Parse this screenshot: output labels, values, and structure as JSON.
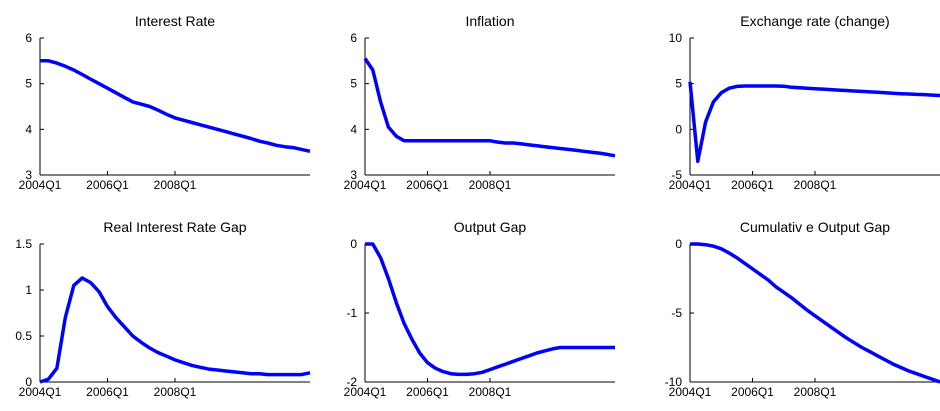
{
  "chart_data": [
    {
      "type": "line",
      "title": "Interest Rate",
      "x_ticks": [
        "2004Q1",
        "2006Q1",
        "2008Q1"
      ],
      "yticks": [
        3,
        4,
        5,
        6
      ],
      "ylim": [
        3,
        6
      ],
      "grid": false,
      "series": [
        {
          "color": "#0000FF",
          "values": [
            5.5,
            5.5,
            5.45,
            5.38,
            5.3,
            5.2,
            5.1,
            5.0,
            4.9,
            4.8,
            4.7,
            4.6,
            4.55,
            4.5,
            4.42,
            4.33,
            4.25,
            4.2,
            4.15,
            4.1,
            4.05,
            4.0,
            3.95,
            3.9,
            3.85,
            3.8,
            3.74,
            3.7,
            3.65,
            3.62,
            3.6,
            3.56,
            3.52
          ]
        }
      ]
    },
    {
      "type": "line",
      "title": "Inflation",
      "x_ticks": [
        "2004Q1",
        "2006Q1",
        "2008Q1"
      ],
      "yticks": [
        3,
        4,
        5,
        6
      ],
      "ylim": [
        3,
        6
      ],
      "grid": false,
      "series": [
        {
          "color": "#0000FF",
          "values": [
            5.55,
            5.3,
            4.6,
            4.05,
            3.85,
            3.75,
            3.75,
            3.75,
            3.75,
            3.75,
            3.75,
            3.75,
            3.75,
            3.75,
            3.75,
            3.75,
            3.75,
            3.72,
            3.7,
            3.7,
            3.68,
            3.66,
            3.64,
            3.62,
            3.6,
            3.58,
            3.56,
            3.54,
            3.52,
            3.5,
            3.48,
            3.45,
            3.42
          ]
        }
      ]
    },
    {
      "type": "line",
      "title": "Exchange rate (change)",
      "x_ticks": [
        "2004Q1",
        "2006Q1",
        "2008Q1"
      ],
      "yticks": [
        -5,
        0,
        5,
        10
      ],
      "ylim": [
        -5,
        10
      ],
      "grid": false,
      "series": [
        {
          "color": "#0000FF",
          "values": [
            5.2,
            -3.5,
            0.8,
            3.0,
            4.0,
            4.5,
            4.7,
            4.75,
            4.75,
            4.75,
            4.75,
            4.75,
            4.72,
            4.6,
            4.55,
            4.5,
            4.45,
            4.4,
            4.35,
            4.3,
            4.25,
            4.2,
            4.15,
            4.1,
            4.05,
            4.0,
            3.95,
            3.9,
            3.87,
            3.83,
            3.8,
            3.75,
            3.7
          ]
        }
      ]
    },
    {
      "type": "line",
      "title": "Real Interest Rate Gap",
      "x_ticks": [
        "2004Q1",
        "2006Q1",
        "2008Q1"
      ],
      "yticks": [
        0,
        0.5,
        1,
        1.5
      ],
      "ylim": [
        0,
        1.5
      ],
      "grid": false,
      "series": [
        {
          "color": "#0000FF",
          "values": [
            0.0,
            0.03,
            0.15,
            0.7,
            1.05,
            1.13,
            1.08,
            0.98,
            0.82,
            0.7,
            0.6,
            0.5,
            0.43,
            0.37,
            0.32,
            0.28,
            0.24,
            0.21,
            0.18,
            0.16,
            0.14,
            0.13,
            0.12,
            0.11,
            0.1,
            0.09,
            0.09,
            0.08,
            0.08,
            0.08,
            0.08,
            0.08,
            0.1
          ]
        }
      ]
    },
    {
      "type": "line",
      "title": "Output Gap",
      "x_ticks": [
        "2004Q1",
        "2006Q1",
        "2008Q1"
      ],
      "yticks": [
        -2,
        -1,
        0
      ],
      "ylim": [
        -2,
        0
      ],
      "grid": false,
      "series": [
        {
          "color": "#0000FF",
          "values": [
            0.0,
            0.0,
            -0.2,
            -0.5,
            -0.85,
            -1.15,
            -1.38,
            -1.58,
            -1.72,
            -1.8,
            -1.85,
            -1.88,
            -1.89,
            -1.89,
            -1.88,
            -1.86,
            -1.82,
            -1.78,
            -1.74,
            -1.7,
            -1.66,
            -1.62,
            -1.58,
            -1.55,
            -1.52,
            -1.5,
            -1.5,
            -1.5,
            -1.5,
            -1.5,
            -1.5,
            -1.5,
            -1.5
          ]
        }
      ]
    },
    {
      "type": "line",
      "title": "Cumulativ e Output Gap",
      "x_ticks": [
        "2004Q1",
        "2006Q1",
        "2008Q1"
      ],
      "yticks": [
        -10,
        -5,
        0
      ],
      "ylim": [
        -10,
        0
      ],
      "grid": false,
      "series": [
        {
          "color": "#0000FF",
          "values": [
            0.0,
            0.0,
            -0.05,
            -0.15,
            -0.35,
            -0.65,
            -1.0,
            -1.4,
            -1.8,
            -2.2,
            -2.6,
            -3.1,
            -3.5,
            -3.9,
            -4.35,
            -4.8,
            -5.2,
            -5.6,
            -6.0,
            -6.4,
            -6.8,
            -7.15,
            -7.5,
            -7.8,
            -8.1,
            -8.4,
            -8.7,
            -8.95,
            -9.2,
            -9.4,
            -9.6,
            -9.8,
            -10.0
          ]
        }
      ]
    }
  ]
}
